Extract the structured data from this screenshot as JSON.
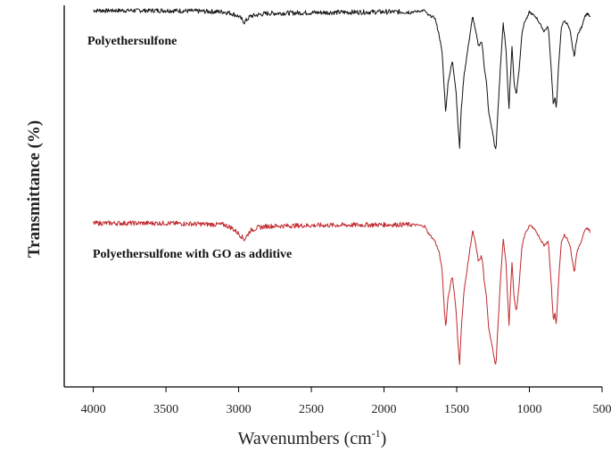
{
  "chart_data": {
    "type": "line",
    "title": "",
    "xlabel": "Wavenumbers (cm",
    "xlabel_sup": "-1",
    "xlabel_end": ")",
    "ylabel": "Transmittance (%)",
    "xlim": [
      4200,
      500
    ],
    "x_reversed": true,
    "y_ticks_shown": false,
    "grid": false,
    "x_ticks": [
      "4000",
      "3500",
      "3000",
      "2500",
      "2000",
      "1500",
      "1000",
      "500"
    ],
    "colors": {
      "series_1": "#111111",
      "series_2": "#c0282d",
      "axis": "#000000"
    },
    "series": [
      {
        "name": "Polyethersulfone",
        "x": [
          4000,
          3500,
          3100,
          3050,
          3000,
          2960,
          2920,
          2870,
          2800,
          2500,
          2000,
          1800,
          1720,
          1700,
          1650,
          1620,
          1600,
          1585,
          1575,
          1560,
          1530,
          1505,
          1490,
          1480,
          1470,
          1450,
          1410,
          1390,
          1370,
          1350,
          1330,
          1320,
          1310,
          1295,
          1280,
          1250,
          1240,
          1230,
          1220,
          1200,
          1180,
          1160,
          1150,
          1140,
          1130,
          1120,
          1105,
          1090,
          1070,
          1050,
          1030,
          1010,
          1000,
          950,
          900,
          870,
          850,
          835,
          825,
          815,
          800,
          780,
          760,
          740,
          720,
          700,
          690,
          680,
          670,
          640,
          620,
          600,
          580
        ],
        "y": [
          99,
          99,
          98,
          97,
          95,
          91,
          95,
          96,
          97,
          97.5,
          98,
          98,
          99,
          96,
          94,
          82,
          70,
          45,
          30,
          50,
          65,
          45,
          20,
          6,
          30,
          55,
          82,
          95,
          85,
          75,
          78,
          72,
          60,
          50,
          30,
          15,
          8,
          4,
          25,
          60,
          90,
          72,
          50,
          33,
          55,
          75,
          50,
          42,
          60,
          85,
          92,
          95,
          98,
          94,
          85,
          88,
          60,
          35,
          40,
          33,
          60,
          88,
          92,
          90,
          85,
          72,
          68,
          76,
          82,
          88,
          95,
          97,
          94
        ]
      },
      {
        "name": "Polyethersulfone with GO as additive",
        "x": [
          4000,
          3500,
          3100,
          3050,
          3000,
          2960,
          2920,
          2870,
          2800,
          2500,
          2000,
          1800,
          1720,
          1700,
          1650,
          1620,
          1600,
          1585,
          1575,
          1560,
          1530,
          1505,
          1490,
          1480,
          1470,
          1450,
          1410,
          1390,
          1370,
          1350,
          1330,
          1320,
          1310,
          1295,
          1280,
          1250,
          1240,
          1230,
          1220,
          1200,
          1180,
          1160,
          1150,
          1140,
          1130,
          1120,
          1105,
          1090,
          1070,
          1050,
          1030,
          1010,
          1000,
          950,
          900,
          870,
          850,
          835,
          825,
          815,
          800,
          780,
          760,
          740,
          720,
          700,
          690,
          680,
          670,
          640,
          620,
          600,
          580
        ],
        "y": [
          98,
          98,
          97,
          95,
          91,
          87,
          93,
          95,
          96,
          96.5,
          97,
          97,
          96,
          92,
          86,
          78,
          66,
          40,
          28,
          48,
          63,
          40,
          15,
          3,
          25,
          52,
          80,
          93,
          84,
          72,
          76,
          70,
          58,
          48,
          28,
          12,
          6,
          2,
          22,
          58,
          88,
          70,
          48,
          30,
          52,
          72,
          48,
          38,
          58,
          83,
          91,
          94,
          97,
          92,
          83,
          86,
          58,
          32,
          38,
          30,
          58,
          86,
          90,
          88,
          83,
          70,
          65,
          74,
          80,
          86,
          93,
          95,
          92
        ]
      }
    ]
  }
}
